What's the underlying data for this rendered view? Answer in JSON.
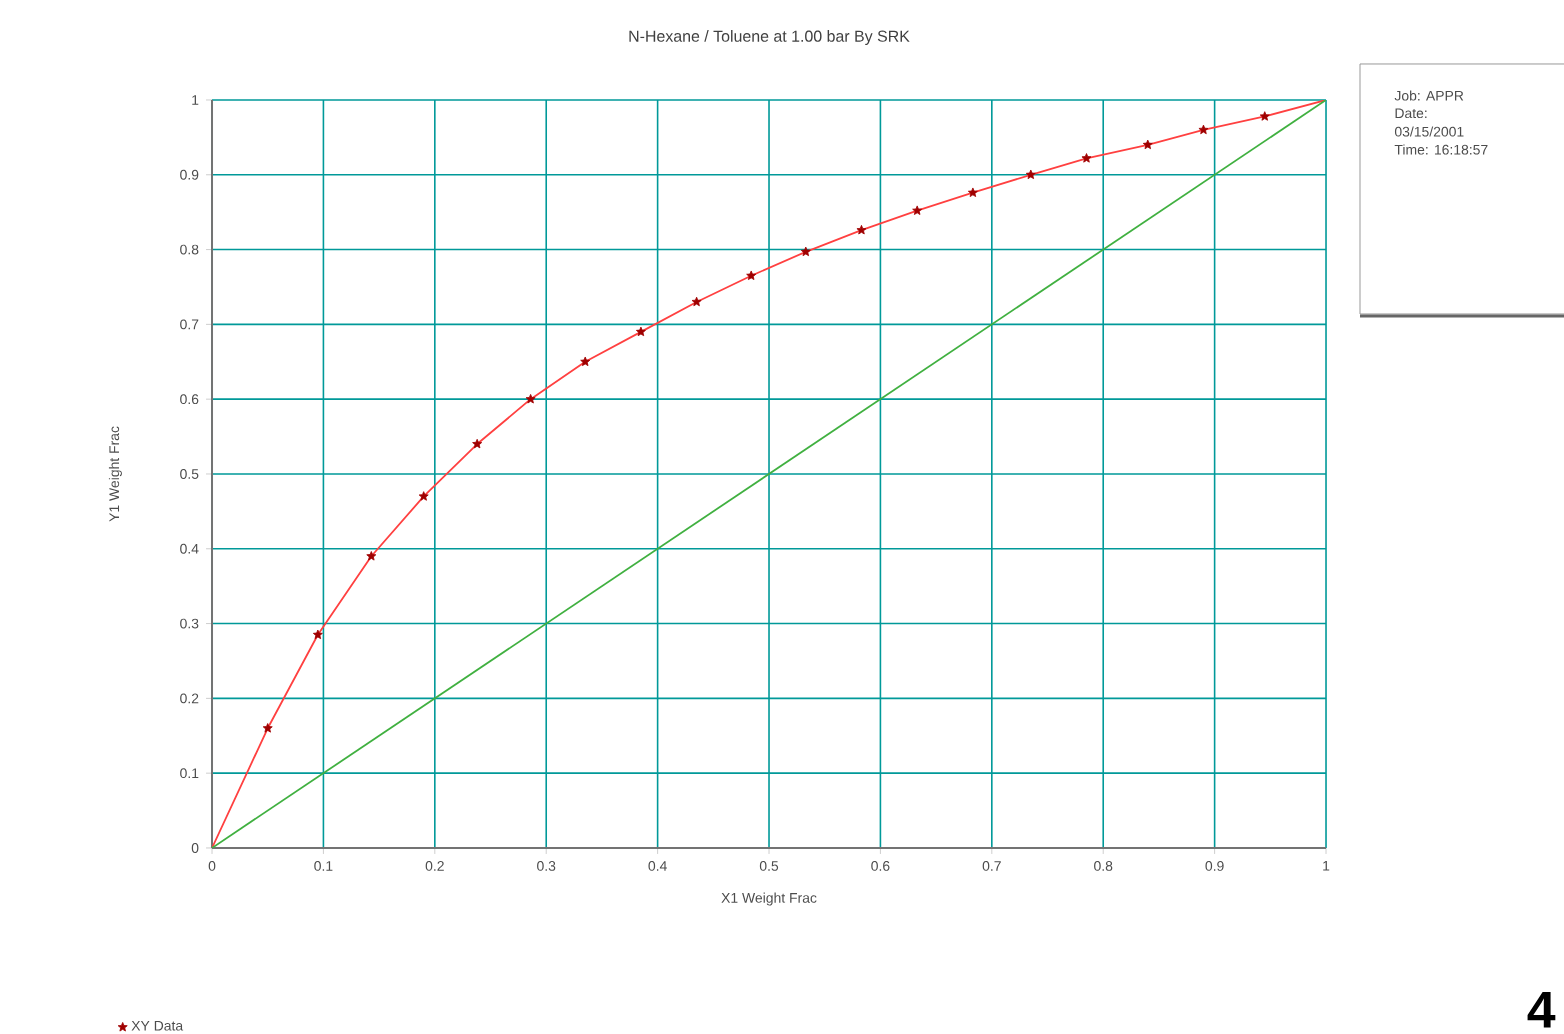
{
  "chart_data": {
    "type": "line",
    "title": "N-Hexane / Toluene at     1.00 bar By SRK",
    "xlabel": "X1 Weight Frac",
    "ylabel": "Y1 Weight Frac",
    "xlim": [
      0,
      1
    ],
    "ylim": [
      0,
      1
    ],
    "xticks": [
      0,
      0.1,
      0.2,
      0.3,
      0.4,
      0.5,
      0.6,
      0.7,
      0.8,
      0.9,
      1
    ],
    "yticks": [
      0,
      0.1,
      0.2,
      0.3,
      0.4,
      0.5,
      0.6,
      0.7,
      0.8,
      0.9,
      1
    ],
    "grid": true,
    "legend": "bottom left",
    "series": [
      {
        "color": "#ff4040",
        "marker": "none",
        "x": [
          0,
          0.05,
          0.095,
          0.143,
          0.19,
          0.238,
          0.286,
          0.335,
          0.385,
          0.435,
          0.484,
          0.533,
          0.583,
          0.633,
          0.683,
          0.735,
          0.785,
          0.84,
          0.89,
          0.945,
          1
        ],
        "values": [
          0,
          0.16,
          0.285,
          0.39,
          0.47,
          0.54,
          0.6,
          0.65,
          0.69,
          0.73,
          0.765,
          0.797,
          0.826,
          0.852,
          0.876,
          0.9,
          0.922,
          0.94,
          0.96,
          0.978,
          1
        ]
      },
      {
        "color": "#40b040",
        "marker": "none",
        "x": [
          0,
          1
        ],
        "values": [
          0,
          1
        ]
      },
      {
        "type": "scatter",
        "name": "XY Data",
        "color": "#a00000",
        "marker": "star",
        "x": [
          0.05,
          0.095,
          0.143,
          0.19,
          0.238,
          0.286,
          0.335,
          0.385,
          0.435,
          0.484,
          0.533,
          0.583,
          0.633,
          0.683,
          0.735,
          0.785,
          0.84,
          0.89,
          0.945
        ],
        "values": [
          0.16,
          0.285,
          0.39,
          0.47,
          0.54,
          0.6,
          0.65,
          0.69,
          0.73,
          0.765,
          0.797,
          0.826,
          0.852,
          0.876,
          0.9,
          0.922,
          0.94,
          0.96,
          0.978
        ]
      }
    ],
    "annotations": [
      "Job: APPR",
      "Date:",
      "03/15/2001",
      "Time: 16:18:57",
      "4"
    ]
  }
}
